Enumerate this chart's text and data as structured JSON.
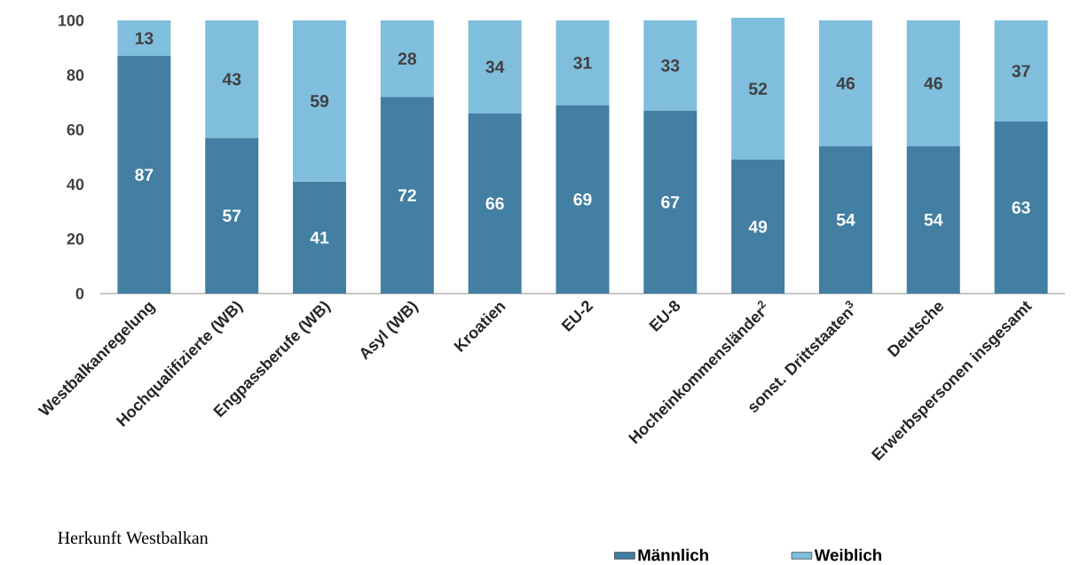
{
  "chart_data": {
    "type": "bar",
    "stacked": true,
    "categories": [
      "Westbalkanregelung",
      "Hochqualifizierte (WB)",
      "Engpassberufe (WB)",
      "Asyl (WB)",
      "Kroatien",
      "EU-2",
      "EU-8",
      "Hocheinkommensländer$^{2}$",
      "sonst. Drittstaaten$^{3}$",
      "Deutsche",
      "Erwerbspersonen insgesamt"
    ],
    "series": [
      {
        "name": "Männlich",
        "color": "#427fa2",
        "values": [
          87,
          57,
          41,
          72,
          66,
          69,
          67,
          49,
          54,
          54,
          63
        ]
      },
      {
        "name": "Weiblich",
        "color": "#80bedd",
        "values": [
          13,
          43,
          59,
          28,
          34,
          31,
          33,
          52,
          46,
          46,
          37
        ]
      }
    ],
    "ylim": [
      0,
      101
    ],
    "yticks": [
      0,
      20,
      40,
      60,
      80,
      100
    ],
    "data_labels": true,
    "legend": "bottom right",
    "grid": false,
    "annotations": [
      "Herkunft Westbalkan"
    ]
  }
}
